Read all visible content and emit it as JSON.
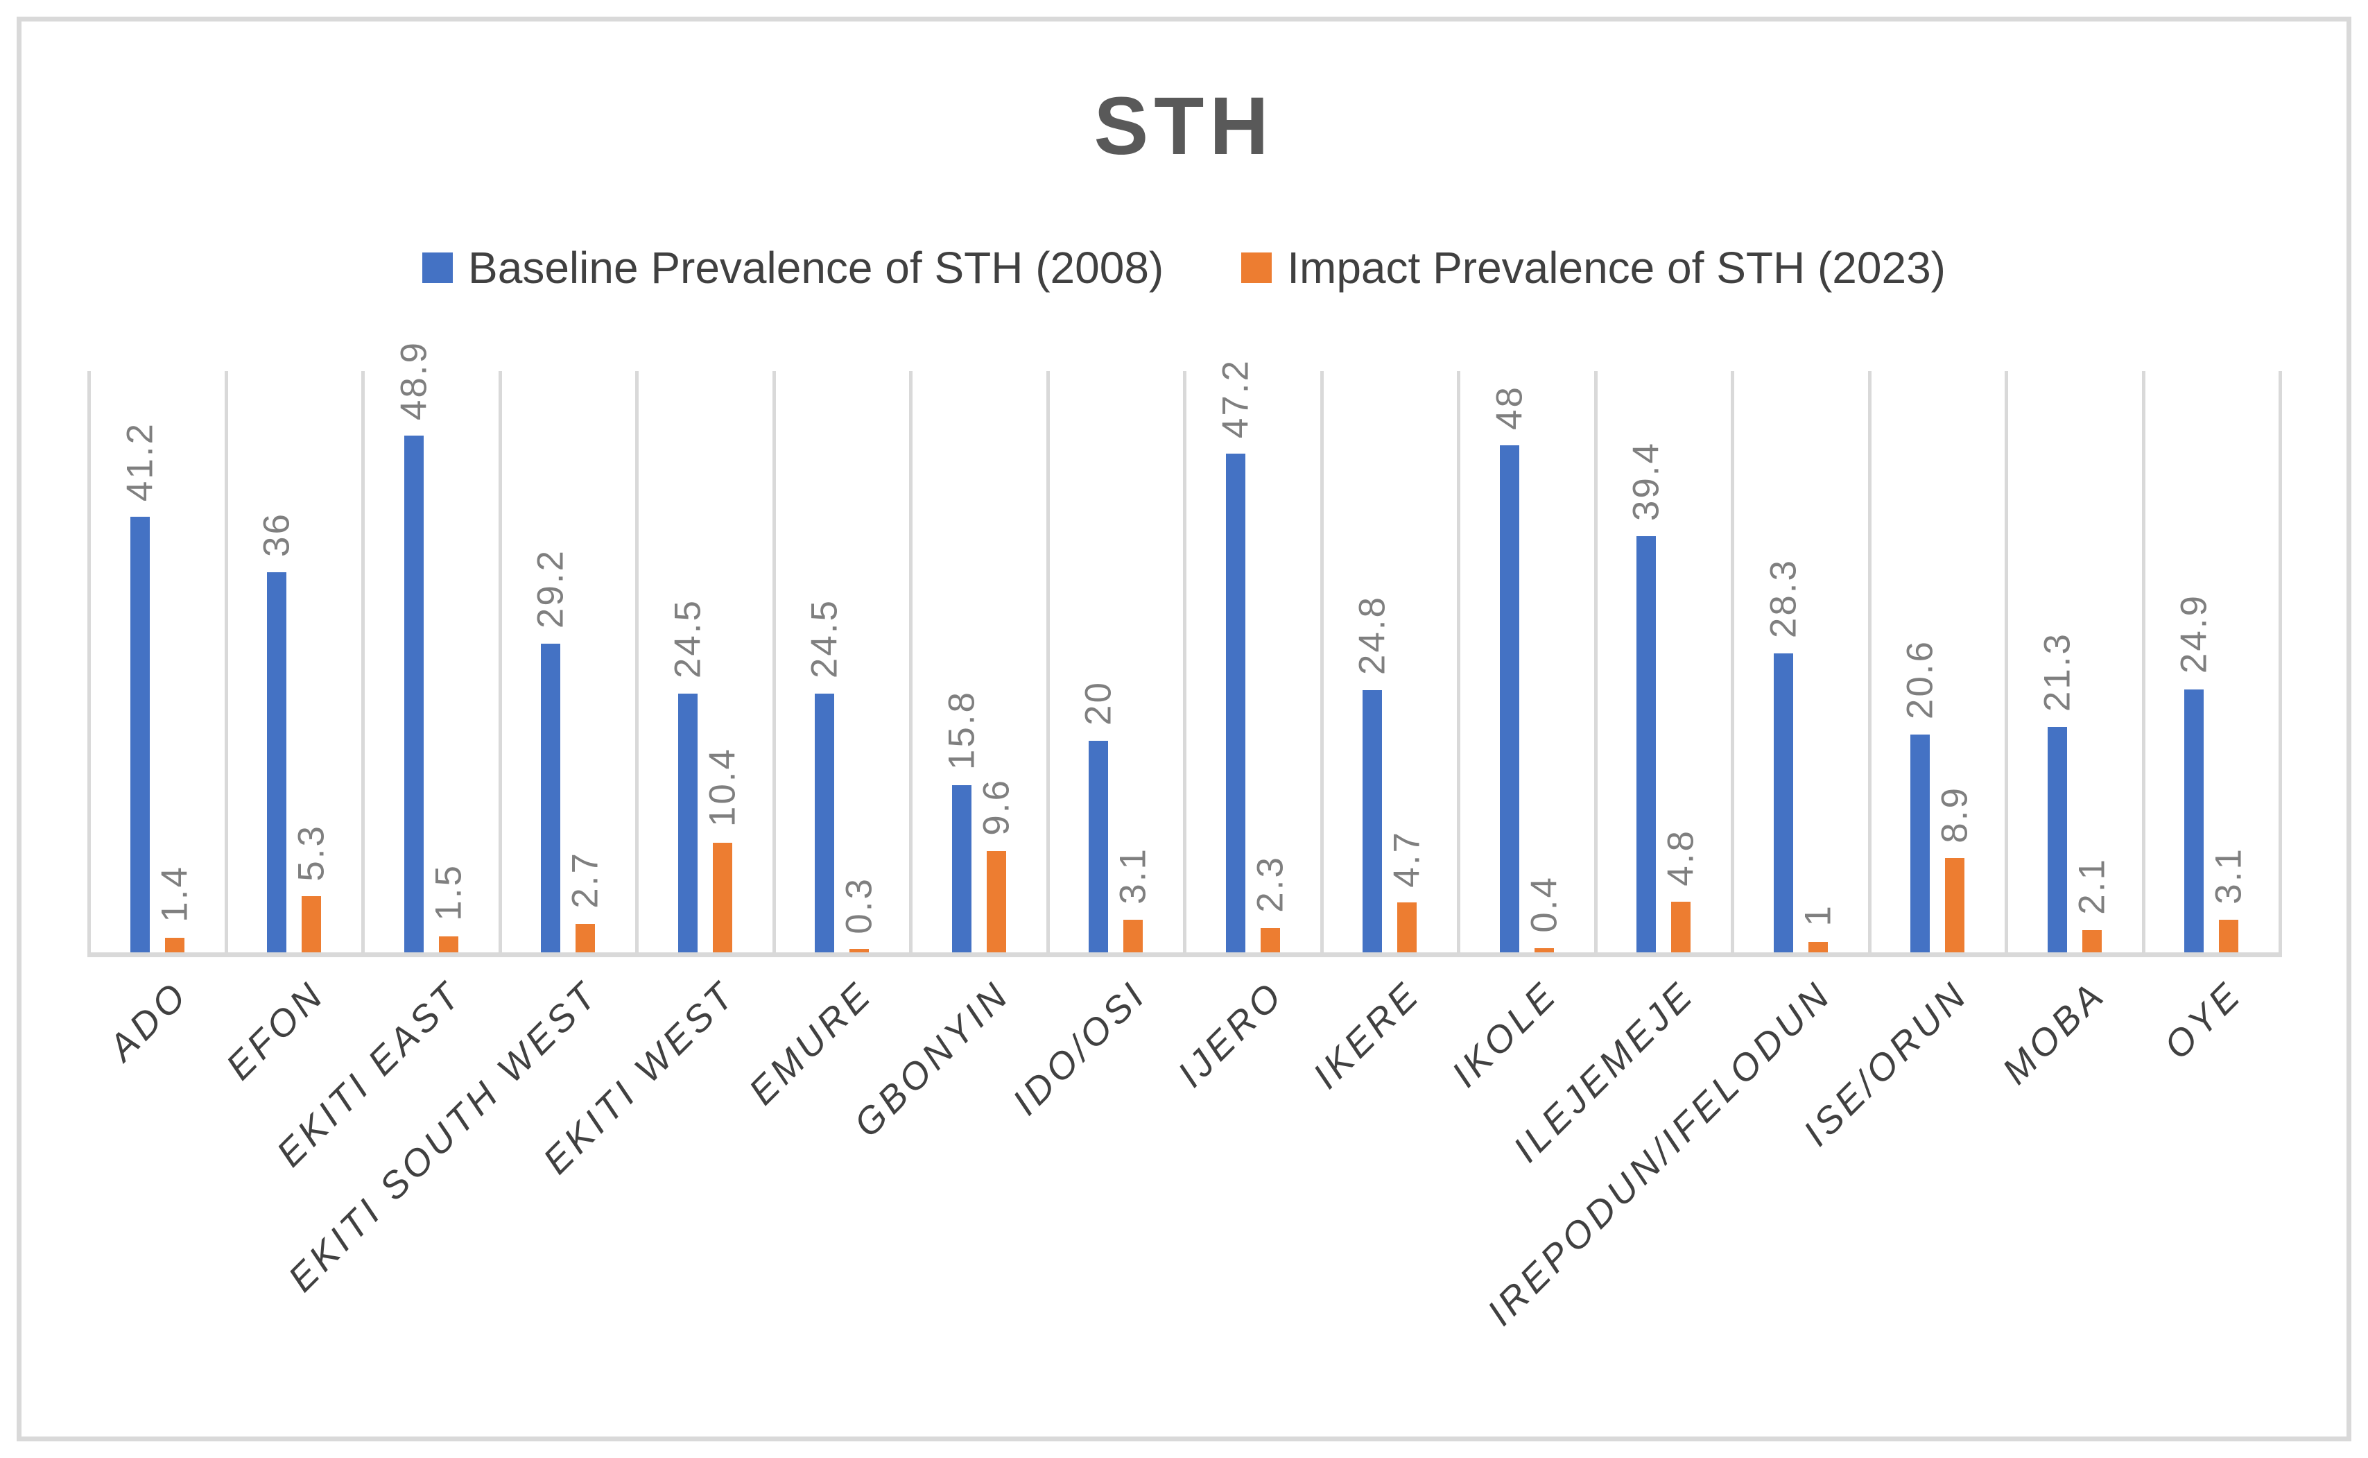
{
  "chart_data": {
    "type": "bar",
    "title": "STH",
    "categories": [
      "ADO",
      "EFON",
      "EKITI EAST",
      "EKITI SOUTH WEST",
      "EKITI WEST",
      "EMURE",
      "GBONYIN",
      "IDO/OSI",
      "IJERO",
      "IKERE",
      "IKOLE",
      "ILEJEMEJE",
      "IREPODUN/IFELODUN",
      "ISE/ORUN",
      "MOBA",
      "OYE"
    ],
    "series": [
      {
        "name": "Baseline Prevalence of STH (2008)",
        "color": "#4472C4",
        "values": [
          41.2,
          36,
          48.9,
          29.2,
          24.5,
          24.5,
          15.8,
          20,
          47.2,
          24.8,
          48,
          39.4,
          28.3,
          20.6,
          21.3,
          24.9
        ]
      },
      {
        "name": "Impact Prevalence of STH (2023)",
        "color": "#ED7D31",
        "values": [
          1.4,
          5.3,
          1.5,
          2.7,
          10.4,
          0.3,
          9.6,
          3.1,
          2.3,
          4.7,
          0.4,
          4.8,
          1,
          8.9,
          2.1,
          3.1
        ]
      }
    ],
    "xlabel": "",
    "ylabel": "",
    "ylim": [
      0,
      55
    ],
    "grid": "vertical-category-boundaries-only",
    "legend_position": "top-center",
    "data_labels": "rotated-90-above-bars",
    "colors": {
      "title_text": "#595959",
      "legend_text": "#404040",
      "data_label_text": "#7f7f7f",
      "axis_label_text": "#404040",
      "gridline": "#d9d9d9",
      "axis_line": "#d9d9d9",
      "frame_border": "#d9d9d9",
      "background": "#ffffff"
    }
  }
}
